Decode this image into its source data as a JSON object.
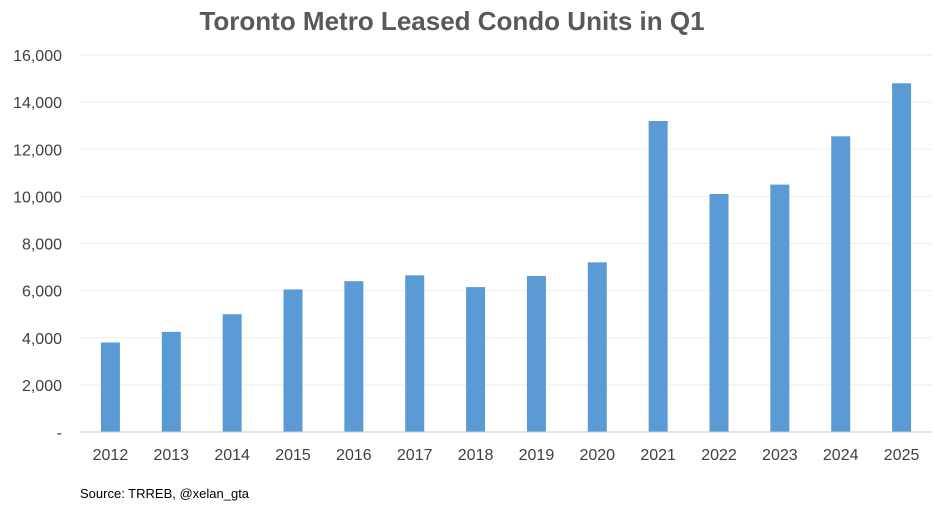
{
  "chart_data": {
    "type": "bar",
    "title": "Toronto Metro Leased Condo Units in Q1",
    "xlabel": "",
    "ylabel": "",
    "categories": [
      "2012",
      "2013",
      "2014",
      "2015",
      "2016",
      "2017",
      "2018",
      "2019",
      "2020",
      "2021",
      "2022",
      "2023",
      "2024",
      "2025"
    ],
    "values": [
      3800,
      4250,
      5000,
      6050,
      6400,
      6650,
      6150,
      6620,
      7200,
      13200,
      10100,
      10500,
      12550,
      14800
    ],
    "ylim": [
      0,
      16000
    ],
    "yticks": [
      0,
      2000,
      4000,
      6000,
      8000,
      10000,
      12000,
      14000,
      16000
    ],
    "ytick_labels": [
      "-",
      "2,000",
      "4,000",
      "6,000",
      "8,000",
      "10,000",
      "12,000",
      "14,000",
      "16,000"
    ],
    "grid": true,
    "legend": "none",
    "bar_color": "#5b9bd5",
    "source": "Source: TRREB, @xelan_gta"
  }
}
